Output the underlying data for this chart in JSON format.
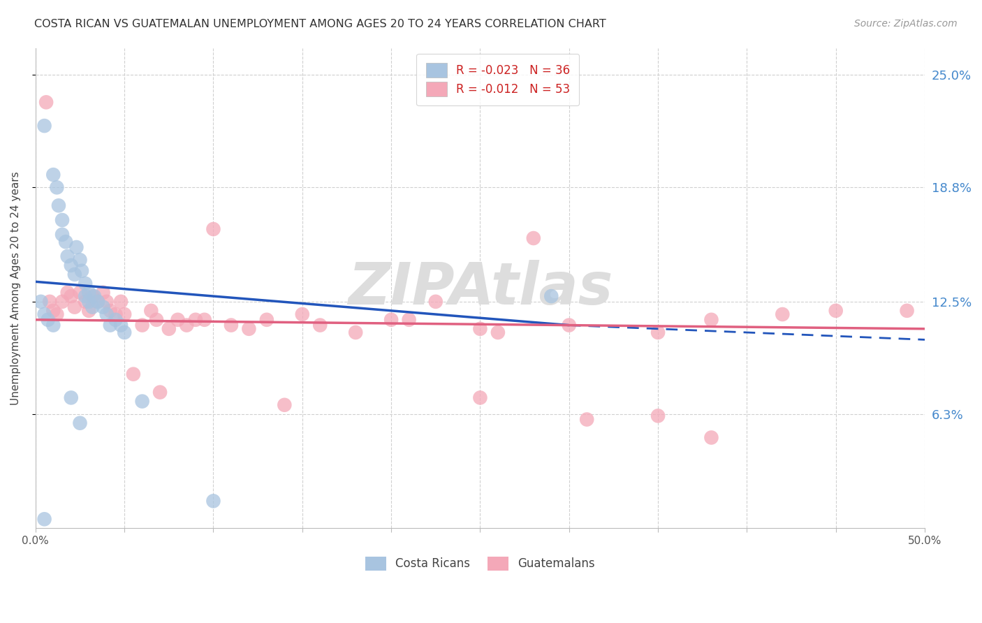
{
  "title": "COSTA RICAN VS GUATEMALAN UNEMPLOYMENT AMONG AGES 20 TO 24 YEARS CORRELATION CHART",
  "source": "Source: ZipAtlas.com",
  "ylabel": "Unemployment Among Ages 20 to 24 years",
  "ytick_labels": [
    "25.0%",
    "18.8%",
    "12.5%",
    "6.3%"
  ],
  "ytick_values": [
    0.25,
    0.188,
    0.125,
    0.063
  ],
  "xlim": [
    0.0,
    0.5
  ],
  "ylim": [
    0.0,
    0.265
  ],
  "blue_R": "-0.023",
  "blue_N": "36",
  "pink_R": "-0.012",
  "pink_N": "53",
  "legend_label_blue": "Costa Ricans",
  "legend_label_pink": "Guatemalans",
  "blue_color": "#a8c4e0",
  "pink_color": "#f4a8b8",
  "blue_line_color": "#2255bb",
  "pink_line_color": "#e06080",
  "blue_line_solid": [
    [
      0.0,
      0.136
    ],
    [
      0.3,
      0.112
    ]
  ],
  "blue_line_dashed": [
    [
      0.3,
      0.112
    ],
    [
      0.5,
      0.104
    ]
  ],
  "pink_line": [
    [
      0.0,
      0.115
    ],
    [
      0.5,
      0.11
    ]
  ],
  "blue_scatter": [
    [
      0.005,
      0.222
    ],
    [
      0.01,
      0.195
    ],
    [
      0.012,
      0.188
    ],
    [
      0.013,
      0.178
    ],
    [
      0.015,
      0.17
    ],
    [
      0.015,
      0.162
    ],
    [
      0.017,
      0.158
    ],
    [
      0.018,
      0.15
    ],
    [
      0.02,
      0.145
    ],
    [
      0.022,
      0.14
    ],
    [
      0.023,
      0.155
    ],
    [
      0.025,
      0.148
    ],
    [
      0.026,
      0.142
    ],
    [
      0.028,
      0.135
    ],
    [
      0.028,
      0.128
    ],
    [
      0.03,
      0.13
    ],
    [
      0.03,
      0.125
    ],
    [
      0.032,
      0.122
    ],
    [
      0.033,
      0.128
    ],
    [
      0.035,
      0.125
    ],
    [
      0.038,
      0.122
    ],
    [
      0.04,
      0.118
    ],
    [
      0.042,
      0.112
    ],
    [
      0.045,
      0.115
    ],
    [
      0.048,
      0.112
    ],
    [
      0.05,
      0.108
    ],
    [
      0.003,
      0.125
    ],
    [
      0.005,
      0.118
    ],
    [
      0.007,
      0.115
    ],
    [
      0.01,
      0.112
    ],
    [
      0.02,
      0.072
    ],
    [
      0.025,
      0.058
    ],
    [
      0.06,
      0.07
    ],
    [
      0.29,
      0.128
    ],
    [
      0.1,
      0.015
    ],
    [
      0.005,
      0.005
    ]
  ],
  "pink_scatter": [
    [
      0.006,
      0.235
    ],
    [
      0.008,
      0.125
    ],
    [
      0.01,
      0.12
    ],
    [
      0.012,
      0.118
    ],
    [
      0.015,
      0.125
    ],
    [
      0.018,
      0.13
    ],
    [
      0.02,
      0.128
    ],
    [
      0.022,
      0.122
    ],
    [
      0.025,
      0.13
    ],
    [
      0.028,
      0.125
    ],
    [
      0.03,
      0.12
    ],
    [
      0.032,
      0.128
    ],
    [
      0.035,
      0.125
    ],
    [
      0.038,
      0.13
    ],
    [
      0.04,
      0.125
    ],
    [
      0.042,
      0.12
    ],
    [
      0.045,
      0.118
    ],
    [
      0.048,
      0.125
    ],
    [
      0.05,
      0.118
    ],
    [
      0.06,
      0.112
    ],
    [
      0.065,
      0.12
    ],
    [
      0.068,
      0.115
    ],
    [
      0.075,
      0.11
    ],
    [
      0.08,
      0.115
    ],
    [
      0.085,
      0.112
    ],
    [
      0.09,
      0.115
    ],
    [
      0.095,
      0.115
    ],
    [
      0.1,
      0.165
    ],
    [
      0.11,
      0.112
    ],
    [
      0.12,
      0.11
    ],
    [
      0.13,
      0.115
    ],
    [
      0.15,
      0.118
    ],
    [
      0.16,
      0.112
    ],
    [
      0.18,
      0.108
    ],
    [
      0.2,
      0.115
    ],
    [
      0.21,
      0.115
    ],
    [
      0.225,
      0.125
    ],
    [
      0.25,
      0.11
    ],
    [
      0.26,
      0.108
    ],
    [
      0.28,
      0.16
    ],
    [
      0.3,
      0.112
    ],
    [
      0.35,
      0.108
    ],
    [
      0.38,
      0.115
    ],
    [
      0.42,
      0.118
    ],
    [
      0.45,
      0.12
    ],
    [
      0.49,
      0.12
    ],
    [
      0.055,
      0.085
    ],
    [
      0.07,
      0.075
    ],
    [
      0.14,
      0.068
    ],
    [
      0.25,
      0.072
    ],
    [
      0.31,
      0.06
    ],
    [
      0.35,
      0.062
    ],
    [
      0.38,
      0.05
    ]
  ],
  "watermark": "ZIPAtlas",
  "background_color": "#ffffff",
  "grid_color": "#d0d0d0"
}
